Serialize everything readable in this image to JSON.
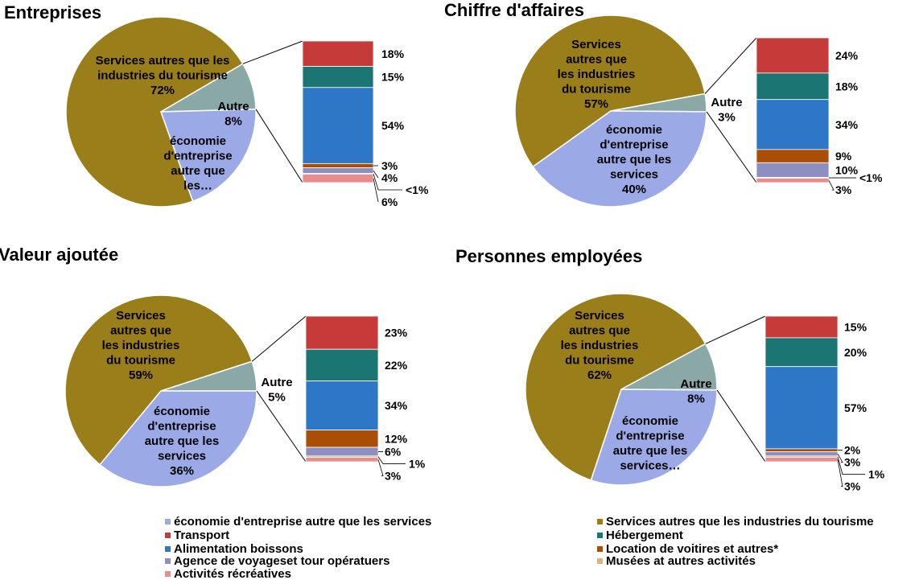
{
  "legend": [
    {
      "id": "eco",
      "label": "économie d'entreprise autre que les services",
      "color": "#9BAAE6"
    },
    {
      "id": "serv",
      "label": "Services autres que les industries du tourisme",
      "color": "#9A7E1A"
    },
    {
      "id": "transport",
      "label": "Transport",
      "color": "#C73A3A"
    },
    {
      "id": "heberg",
      "label": "Hébergement",
      "color": "#1B7673"
    },
    {
      "id": "alim",
      "label": "Alimentation boissons",
      "color": "#2E77C7"
    },
    {
      "id": "location",
      "label": "Location de voitires et autres*",
      "color": "#A84E07"
    },
    {
      "id": "agence",
      "label": "Agence de voyageset tour opératuers",
      "color": "#8E8EC0"
    },
    {
      "id": "musees",
      "label": "Musées at autres activités",
      "color": "#D8B384"
    },
    {
      "id": "activites",
      "label": "Activités récréatives",
      "color": "#E88C8C"
    }
  ],
  "chart_data": [
    {
      "type": "pie-of-bar",
      "title": "Entreprises",
      "pie": [
        {
          "category": "Services autres que les industries du tourisme",
          "value": 72,
          "label": [
            "Services autres que les",
            "industries du tourisme",
            "72%"
          ]
        },
        {
          "category": "Autre",
          "value": 8,
          "label": [
            "Autre",
            "8%"
          ]
        },
        {
          "category": "économie d'entreprise autre que les services",
          "value": 20,
          "label": [
            "économie",
            "d'entreprise",
            "autre que",
            "les…"
          ]
        }
      ],
      "bar": [
        {
          "category": "Transport",
          "value": 18,
          "label": "18%"
        },
        {
          "category": "Hébergement",
          "value": 15,
          "label": "15%"
        },
        {
          "category": "Alimentation boissons",
          "value": 54,
          "label": "54%"
        },
        {
          "category": "Location de voitires et autres*",
          "value": 3,
          "label": "3%"
        },
        {
          "category": "Agence de voyageset tour opératuers",
          "value": 4,
          "label": "4%"
        },
        {
          "category": "Musées at autres activités",
          "value": 0.5,
          "label": "<1%"
        },
        {
          "category": "Activités récréatives",
          "value": 6,
          "label": "6%"
        }
      ]
    },
    {
      "type": "pie-of-bar",
      "title": "Chiffre d'affaires",
      "pie": [
        {
          "category": "Services autres que les industries du tourisme",
          "value": 57,
          "label": [
            "Services",
            "autres que",
            "les industries",
            "du tourisme",
            "57%"
          ]
        },
        {
          "category": "Autre",
          "value": 3,
          "label": [
            "Autre",
            "3%"
          ]
        },
        {
          "category": "économie d'entreprise autre que les services",
          "value": 40,
          "label": [
            "économie",
            "d'entreprise",
            "autre que les",
            "services",
            "40%"
          ]
        }
      ],
      "bar": [
        {
          "category": "Transport",
          "value": 24,
          "label": "24%"
        },
        {
          "category": "Hébergement",
          "value": 18,
          "label": "18%"
        },
        {
          "category": "Alimentation boissons",
          "value": 34,
          "label": "34%"
        },
        {
          "category": "Location de voitires et autres*",
          "value": 9,
          "label": "9%"
        },
        {
          "category": "Agence de voyageset tour opératuers",
          "value": 10,
          "label": "10%"
        },
        {
          "category": "Musées at autres activités",
          "value": 0.5,
          "label": "<1%"
        },
        {
          "category": "Activités récréatives",
          "value": 3,
          "label": "3%"
        }
      ]
    },
    {
      "type": "pie-of-bar",
      "title": "Valeur ajoutée",
      "pie": [
        {
          "category": "Services autres que les industries du tourisme",
          "value": 59,
          "label": [
            "Services",
            "autres que",
            "les industries",
            "du tourisme",
            "59%"
          ]
        },
        {
          "category": "Autre",
          "value": 5,
          "label": [
            "Autre",
            "5%"
          ]
        },
        {
          "category": "économie d'entreprise autre que les services",
          "value": 36,
          "label": [
            "économie",
            "d'entreprise",
            "autre que les",
            "services",
            "36%"
          ]
        }
      ],
      "bar": [
        {
          "category": "Transport",
          "value": 23,
          "label": "23%"
        },
        {
          "category": "Hébergement",
          "value": 22,
          "label": "22%"
        },
        {
          "category": "Alimentation boissons",
          "value": 34,
          "label": "34%"
        },
        {
          "category": "Location de voitires et autres*",
          "value": 12,
          "label": "12%"
        },
        {
          "category": "Agence de voyageset tour opératuers",
          "value": 6,
          "label": "6%"
        },
        {
          "category": "Musées at autres activités",
          "value": 1,
          "label": "1%"
        },
        {
          "category": "Activités récréatives",
          "value": 3,
          "label": "3%"
        }
      ]
    },
    {
      "type": "pie-of-bar",
      "title": "Personnes employées",
      "pie": [
        {
          "category": "Services autres que les industries du tourisme",
          "value": 62,
          "label": [
            "Services",
            "autres que",
            "les industries",
            "du tourisme",
            "62%"
          ]
        },
        {
          "category": "Autre",
          "value": 8,
          "label": [
            "Autre",
            "8%"
          ]
        },
        {
          "category": "économie d'entreprise autre que les services",
          "value": 30,
          "label": [
            "économie",
            "d'entreprise",
            "autre que les",
            "services…"
          ]
        }
      ],
      "bar": [
        {
          "category": "Transport",
          "value": 15,
          "label": "15%"
        },
        {
          "category": "Hébergement",
          "value": 20,
          "label": "20%"
        },
        {
          "category": "Alimentation boissons",
          "value": 57,
          "label": "57%"
        },
        {
          "category": "Location de voitires et autres*",
          "value": 2,
          "label": "2%"
        },
        {
          "category": "Agence de voyageset tour opératuers",
          "value": 3,
          "label": "3%"
        },
        {
          "category": "Musées at autres activités",
          "value": 1,
          "label": "1%"
        },
        {
          "category": "Activités récréatives",
          "value": 3,
          "label": "3%"
        }
      ]
    }
  ]
}
